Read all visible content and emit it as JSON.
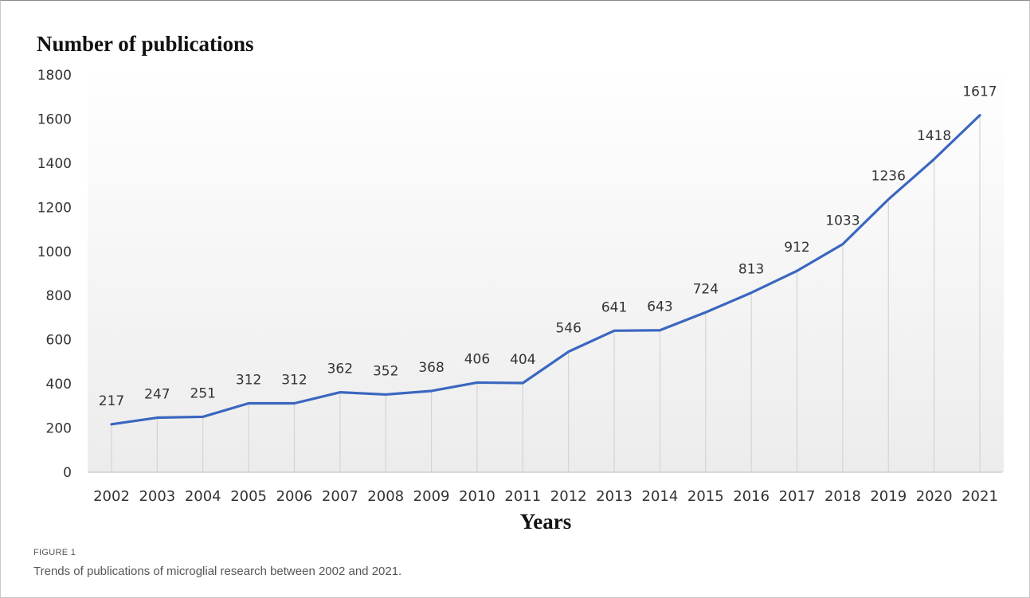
{
  "chart_data": {
    "type": "line",
    "title": "Number of publications",
    "xlabel": "Years",
    "ylabel": "",
    "ylim": [
      0,
      1800
    ],
    "yticks": [
      0,
      200,
      400,
      600,
      800,
      1000,
      1200,
      1400,
      1600,
      1800
    ],
    "categories": [
      "2002",
      "2003",
      "2004",
      "2005",
      "2006",
      "2007",
      "2008",
      "2009",
      "2010",
      "2011",
      "2012",
      "2013",
      "2014",
      "2015",
      "2016",
      "2017",
      "2018",
      "2019",
      "2020",
      "2021"
    ],
    "values": [
      217,
      247,
      251,
      312,
      312,
      362,
      352,
      368,
      406,
      404,
      546,
      641,
      643,
      724,
      813,
      912,
      1033,
      1236,
      1418,
      1617
    ],
    "data_labels": true,
    "grid": "vertical drop lines",
    "colors": {
      "line": "#3b66c0",
      "dropline": "#d4d4d4",
      "axis": "#cccccc",
      "text": "#333333"
    }
  },
  "caption": {
    "label": "FIGURE 1",
    "text": "Trends of publications of microglial research between 2002 and 2021."
  }
}
